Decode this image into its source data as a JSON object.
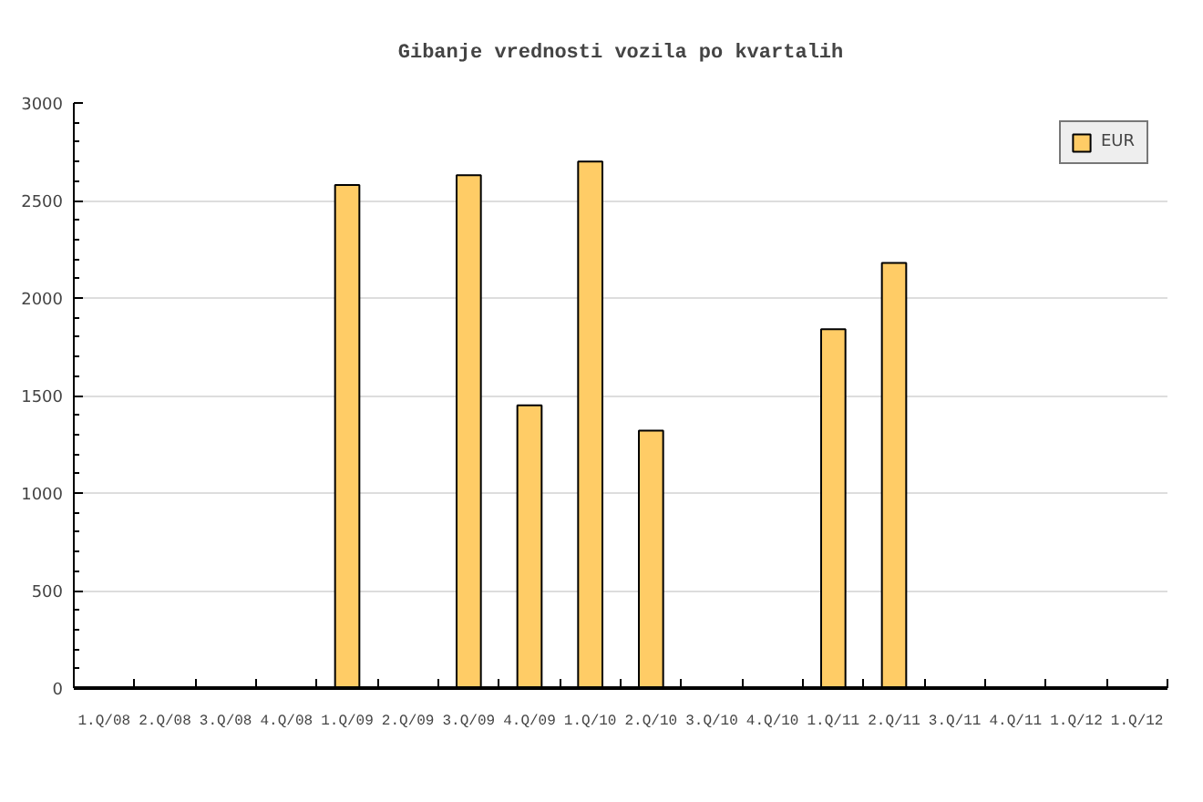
{
  "chart_data": {
    "type": "bar",
    "title": "Gibanje vrednosti vozila po kvartalih",
    "categories": [
      "1.Q/08",
      "2.Q/08",
      "3.Q/08",
      "4.Q/08",
      "1.Q/09",
      "2.Q/09",
      "3.Q/09",
      "4.Q/09",
      "1.Q/10",
      "2.Q/10",
      "3.Q/10",
      "4.Q/10",
      "1.Q/11",
      "2.Q/11",
      "3.Q/11",
      "4.Q/11",
      "1.Q/12",
      "1.Q/12"
    ],
    "series": [
      {
        "name": "EUR",
        "color": "#ffcc66",
        "values": [
          null,
          null,
          null,
          null,
          2580,
          null,
          2630,
          1450,
          2700,
          1320,
          null,
          null,
          1840,
          2180,
          null,
          null,
          null,
          null
        ]
      }
    ],
    "ylim": [
      0,
      3000
    ],
    "yticks": [
      0,
      500,
      1000,
      1500,
      2000,
      2500,
      3000
    ],
    "grid": "y",
    "legend": "top right"
  }
}
